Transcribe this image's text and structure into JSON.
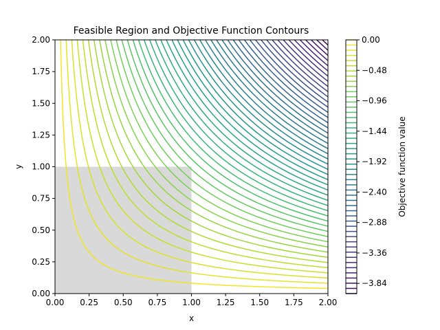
{
  "chart_data": {
    "type": "contour",
    "title": "Feasible Region and Objective Function Contours",
    "xlabel": "x",
    "ylabel": "y",
    "xlim": [
      0,
      2
    ],
    "ylim": [
      0,
      2
    ],
    "xticks": [
      "0.00",
      "0.25",
      "0.50",
      "0.75",
      "1.00",
      "1.25",
      "1.50",
      "1.75",
      "2.00"
    ],
    "yticks": [
      "0.00",
      "0.25",
      "0.50",
      "0.75",
      "1.00",
      "1.25",
      "1.50",
      "1.75",
      "2.00"
    ],
    "grid": false,
    "objective": "-x*y",
    "contour_levels": {
      "min": -4.0,
      "max": 0.0,
      "count": 50
    },
    "feasible_region": {
      "x": [
        0,
        1
      ],
      "y": [
        0,
        1
      ],
      "color": "#d9d9d9"
    },
    "colormap": "viridis",
    "colorbar": {
      "label": "Objective function value",
      "ticks": [
        "0.00",
        "−0.48",
        "−0.96",
        "−1.44",
        "−1.92",
        "−2.40",
        "−2.88",
        "−3.36",
        "−3.84"
      ],
      "tick_values": [
        0.0,
        -0.48,
        -0.96,
        -1.44,
        -1.92,
        -2.4,
        -2.88,
        -3.36,
        -3.84
      ]
    }
  }
}
